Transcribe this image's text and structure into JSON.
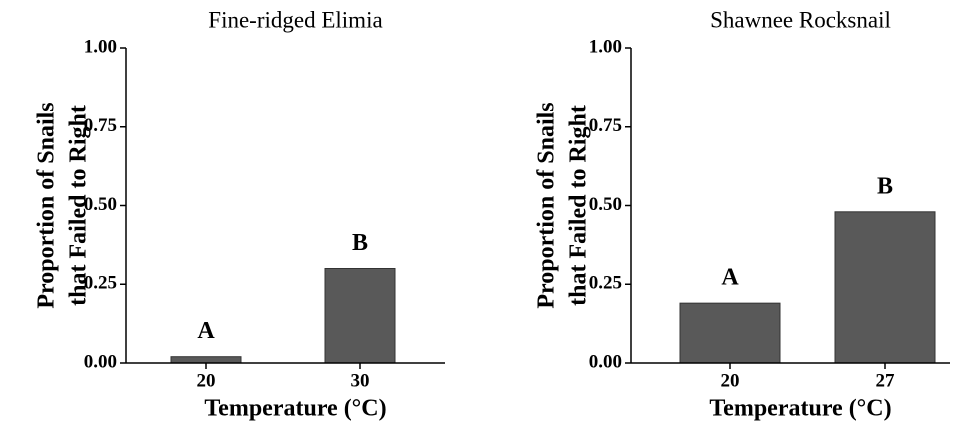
{
  "chart_data": [
    {
      "type": "bar",
      "title": "Fine-ridged Elimia",
      "categories": [
        "20",
        "30"
      ],
      "values": [
        0.02,
        0.3
      ],
      "annotations": [
        "A",
        "B"
      ],
      "color": "#595959",
      "xlabel": "Temperature (°C)",
      "ylabel": [
        "Proportion of Snails",
        "that Failed to Right"
      ],
      "ylim": [
        0,
        1
      ],
      "yticks": [
        {
          "value": 0,
          "label": "0.00"
        },
        {
          "value": 0.25,
          "label": "0.25"
        },
        {
          "value": 0.5,
          "label": "0.50"
        },
        {
          "value": 0.75,
          "label": "0.75"
        },
        {
          "value": 1,
          "label": "1.00"
        }
      ]
    },
    {
      "type": "bar",
      "title": "Shawnee Rocksnail",
      "categories": [
        "20",
        "27"
      ],
      "values": [
        0.19,
        0.48
      ],
      "annotations": [
        "A",
        "B"
      ],
      "color": "#595959",
      "xlabel": "Temperature (°C)",
      "ylabel": [
        "Proportion of Snails",
        "that Failed to Right"
      ],
      "ylim": [
        0,
        1
      ],
      "yticks": [
        {
          "value": 0,
          "label": "0.00"
        },
        {
          "value": 0.25,
          "label": "0.25"
        },
        {
          "value": 0.5,
          "label": "0.50"
        },
        {
          "value": 0.75,
          "label": "0.75"
        },
        {
          "value": 1,
          "label": "1.00"
        }
      ]
    }
  ]
}
